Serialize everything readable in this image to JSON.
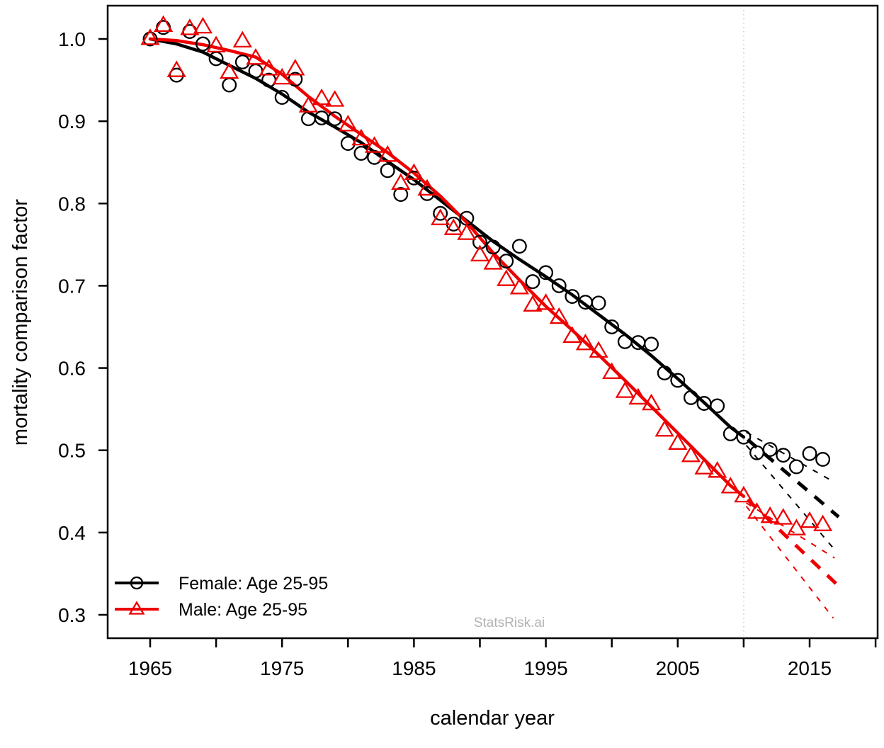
{
  "chart_data": {
    "type": "scatter",
    "title": "",
    "xlabel": "calendar year",
    "ylabel": "mortality comparison factor",
    "x_range_years": [
      1961.8,
      2020.2
    ],
    "y_range": [
      0.272,
      1.04
    ],
    "x_ticks": [
      1965,
      1970,
      1975,
      1980,
      1985,
      1990,
      1995,
      2000,
      2005,
      2010,
      2015,
      2020
    ],
    "x_labeled_ticks": [
      1965,
      1975,
      1985,
      1995,
      2005,
      2015
    ],
    "y_ticks": [
      1.0,
      0.9,
      0.8,
      0.7,
      0.6,
      0.5,
      0.4,
      0.3
    ],
    "y_tick_labels": [
      "1.0",
      "0.9",
      "0.8",
      "0.7",
      "0.6",
      "0.5",
      "0.4",
      "0.3"
    ],
    "grid": false,
    "legend_position": "bottom-left",
    "reference_line_year": 2010,
    "reference_line_color": "#c3c3c3",
    "watermark": {
      "text": "StatsRisk.ai",
      "color": "#b2b2b2"
    },
    "series": [
      {
        "name": "Female: Age 25-95",
        "marker": "circle",
        "color": "#000000",
        "points": [
          [
            1965,
            1.0
          ],
          [
            1966,
            1.014
          ],
          [
            1967,
            0.956
          ],
          [
            1968,
            1.009
          ],
          [
            1969,
            0.994
          ],
          [
            1970,
            0.976
          ],
          [
            1971,
            0.944
          ],
          [
            1972,
            0.972
          ],
          [
            1973,
            0.961
          ],
          [
            1974,
            0.95
          ],
          [
            1975,
            0.929
          ],
          [
            1976,
            0.951
          ],
          [
            1977,
            0.903
          ],
          [
            1978,
            0.904
          ],
          [
            1979,
            0.903
          ],
          [
            1980,
            0.873
          ],
          [
            1981,
            0.861
          ],
          [
            1982,
            0.856
          ],
          [
            1983,
            0.84
          ],
          [
            1984,
            0.811
          ],
          [
            1985,
            0.831
          ],
          [
            1986,
            0.812
          ],
          [
            1987,
            0.788
          ],
          [
            1988,
            0.775
          ],
          [
            1989,
            0.782
          ],
          [
            1990,
            0.753
          ],
          [
            1991,
            0.747
          ],
          [
            1992,
            0.73
          ],
          [
            1993,
            0.748
          ],
          [
            1994,
            0.705
          ],
          [
            1995,
            0.716
          ],
          [
            1996,
            0.7
          ],
          [
            1997,
            0.687
          ],
          [
            1998,
            0.68
          ],
          [
            1999,
            0.679
          ],
          [
            2000,
            0.65
          ],
          [
            2001,
            0.632
          ],
          [
            2002,
            0.631
          ],
          [
            2003,
            0.629
          ],
          [
            2004,
            0.594
          ],
          [
            2005,
            0.585
          ],
          [
            2006,
            0.564
          ],
          [
            2007,
            0.557
          ],
          [
            2008,
            0.554
          ],
          [
            2009,
            0.52
          ],
          [
            2010,
            0.516
          ],
          [
            2011,
            0.497
          ],
          [
            2012,
            0.501
          ],
          [
            2013,
            0.494
          ],
          [
            2014,
            0.48
          ],
          [
            2015,
            0.496
          ],
          [
            2016,
            0.489
          ]
        ]
      },
      {
        "name": "Male: Age 25-95",
        "marker": "triangle",
        "color": "#ee0000",
        "points": [
          [
            1965,
            1.0
          ],
          [
            1966,
            1.016
          ],
          [
            1967,
            0.961
          ],
          [
            1968,
            1.012
          ],
          [
            1969,
            1.014
          ],
          [
            1970,
            0.991
          ],
          [
            1971,
            0.959
          ],
          [
            1972,
            0.997
          ],
          [
            1973,
            0.976
          ],
          [
            1974,
            0.963
          ],
          [
            1975,
            0.952
          ],
          [
            1976,
            0.963
          ],
          [
            1977,
            0.918
          ],
          [
            1978,
            0.927
          ],
          [
            1979,
            0.925
          ],
          [
            1980,
            0.895
          ],
          [
            1981,
            0.878
          ],
          [
            1982,
            0.869
          ],
          [
            1983,
            0.858
          ],
          [
            1984,
            0.824
          ],
          [
            1985,
            0.836
          ],
          [
            1986,
            0.817
          ],
          [
            1987,
            0.781
          ],
          [
            1988,
            0.769
          ],
          [
            1989,
            0.763
          ],
          [
            1990,
            0.737
          ],
          [
            1991,
            0.727
          ],
          [
            1992,
            0.707
          ],
          [
            1993,
            0.697
          ],
          [
            1994,
            0.676
          ],
          [
            1995,
            0.678
          ],
          [
            1996,
            0.661
          ],
          [
            1997,
            0.638
          ],
          [
            1998,
            0.629
          ],
          [
            1999,
            0.62
          ],
          [
            2000,
            0.594
          ],
          [
            2001,
            0.571
          ],
          [
            2002,
            0.563
          ],
          [
            2003,
            0.556
          ],
          [
            2004,
            0.524
          ],
          [
            2005,
            0.508
          ],
          [
            2006,
            0.493
          ],
          [
            2007,
            0.478
          ],
          [
            2008,
            0.474
          ],
          [
            2009,
            0.455
          ],
          [
            2010,
            0.444
          ],
          [
            2011,
            0.424
          ],
          [
            2012,
            0.419
          ],
          [
            2013,
            0.417
          ],
          [
            2014,
            0.404
          ],
          [
            2015,
            0.413
          ],
          [
            2016,
            0.409
          ]
        ]
      }
    ],
    "smooth_fits": [
      {
        "series": "Female: Age 25-95",
        "color": "#000000",
        "points": [
          [
            1965,
            1.0
          ],
          [
            1967,
            0.994
          ],
          [
            1969,
            0.984
          ],
          [
            1971,
            0.968
          ],
          [
            1973,
            0.952
          ],
          [
            1975,
            0.933
          ],
          [
            1977,
            0.911
          ],
          [
            1979,
            0.893
          ],
          [
            1981,
            0.874
          ],
          [
            1983,
            0.851
          ],
          [
            1985,
            0.829
          ],
          [
            1987,
            0.804
          ],
          [
            1989,
            0.779
          ],
          [
            1991,
            0.754
          ],
          [
            1993,
            0.732
          ],
          [
            1995,
            0.711
          ],
          [
            1997,
            0.689
          ],
          [
            1999,
            0.665
          ],
          [
            2001,
            0.641
          ],
          [
            2003,
            0.615
          ],
          [
            2005,
            0.587
          ],
          [
            2007,
            0.558
          ],
          [
            2009,
            0.528
          ],
          [
            2010,
            0.516
          ]
        ]
      },
      {
        "series": "Male: Age 25-95",
        "color": "#ee0000",
        "points": [
          [
            1965,
            1.0
          ],
          [
            1967,
            0.998
          ],
          [
            1969,
            0.993
          ],
          [
            1971,
            0.986
          ],
          [
            1973,
            0.978
          ],
          [
            1975,
            0.957
          ],
          [
            1977,
            0.93
          ],
          [
            1979,
            0.906
          ],
          [
            1981,
            0.884
          ],
          [
            1983,
            0.862
          ],
          [
            1985,
            0.837
          ],
          [
            1987,
            0.809
          ],
          [
            1989,
            0.777
          ],
          [
            1991,
            0.74
          ],
          [
            1993,
            0.707
          ],
          [
            1995,
            0.675
          ],
          [
            1997,
            0.646
          ],
          [
            1999,
            0.616
          ],
          [
            2001,
            0.585
          ],
          [
            2003,
            0.553
          ],
          [
            2005,
            0.521
          ],
          [
            2007,
            0.489
          ],
          [
            2009,
            0.457
          ],
          [
            2010,
            0.444
          ]
        ]
      }
    ],
    "projections": [
      {
        "series": "Female: Age 25-95",
        "band": "central",
        "weight": "thick",
        "color": "#000000",
        "points": [
          [
            2010.3,
            0.513
          ],
          [
            2017.2,
            0.419
          ]
        ]
      },
      {
        "series": "Female: Age 25-95",
        "band": "upper",
        "weight": "thin",
        "color": "#000000",
        "points": [
          [
            2010.2,
            0.522
          ],
          [
            2016.9,
            0.461
          ]
        ]
      },
      {
        "series": "Female: Age 25-95",
        "band": "lower",
        "weight": "thin",
        "color": "#000000",
        "points": [
          [
            2010.2,
            0.506
          ],
          [
            2016.8,
            0.381
          ]
        ]
      },
      {
        "series": "Male: Age 25-95",
        "band": "central",
        "weight": "thick",
        "color": "#ee0000",
        "points": [
          [
            2010.3,
            0.44
          ],
          [
            2017.0,
            0.338
          ]
        ]
      },
      {
        "series": "Male: Age 25-95",
        "band": "upper",
        "weight": "thin",
        "color": "#ee0000",
        "points": [
          [
            2010.2,
            0.436
          ],
          [
            2016.9,
            0.369
          ]
        ]
      },
      {
        "series": "Male: Age 25-95",
        "band": "lower",
        "weight": "thin",
        "color": "#ee0000",
        "points": [
          [
            2010.2,
            0.432
          ],
          [
            2016.8,
            0.296
          ]
        ]
      }
    ]
  }
}
